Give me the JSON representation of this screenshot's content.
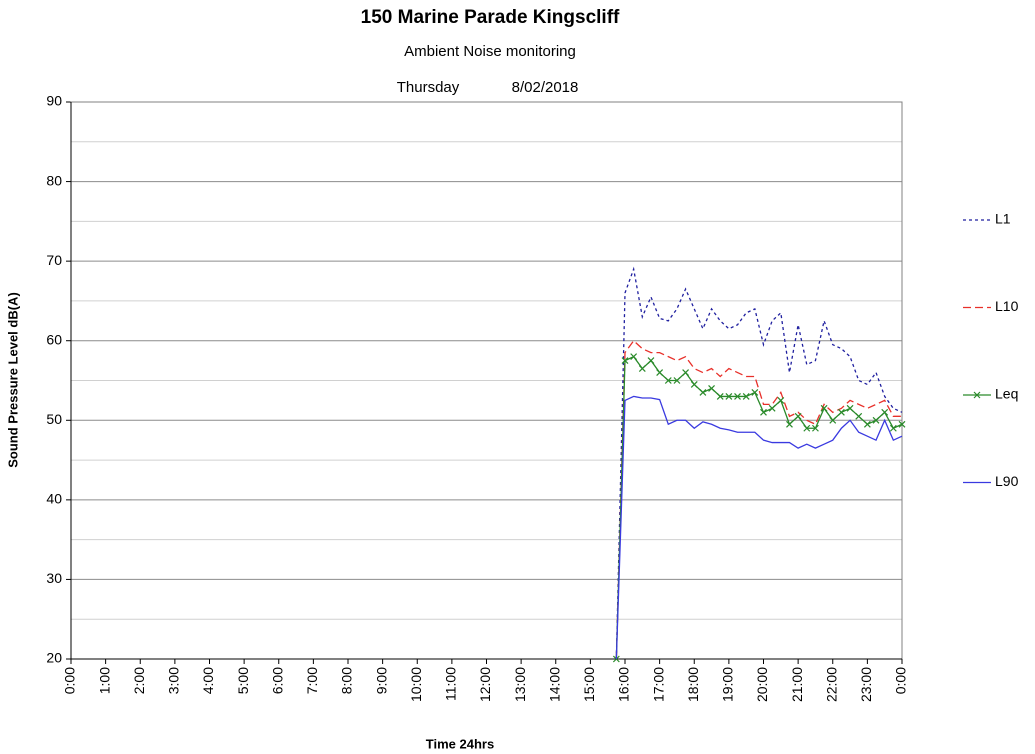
{
  "chart_data": {
    "type": "line",
    "title": "150 Marine Parade Kingscliff",
    "subtitle": "Ambient Noise monitoring",
    "day": "Thursday",
    "date": "8/02/2018",
    "x_label": "Time 24hrs",
    "y_label": "Sound Pressure Level dB(A)",
    "xlim": [
      0,
      24
    ],
    "xticks": [
      {
        "value": 0,
        "label": "0:00"
      },
      {
        "value": 1,
        "label": "1:00"
      },
      {
        "value": 2,
        "label": "2:00"
      },
      {
        "value": 3,
        "label": "3:00"
      },
      {
        "value": 4,
        "label": "4:00"
      },
      {
        "value": 5,
        "label": "5:00"
      },
      {
        "value": 6,
        "label": "6:00"
      },
      {
        "value": 7,
        "label": "7:00"
      },
      {
        "value": 8,
        "label": "8:00"
      },
      {
        "value": 9,
        "label": "9:00"
      },
      {
        "value": 10,
        "label": "10:00"
      },
      {
        "value": 11,
        "label": "11:00"
      },
      {
        "value": 12,
        "label": "12:00"
      },
      {
        "value": 13,
        "label": "13:00"
      },
      {
        "value": 14,
        "label": "14:00"
      },
      {
        "value": 15,
        "label": "15:00"
      },
      {
        "value": 16,
        "label": "16:00"
      },
      {
        "value": 17,
        "label": "17:00"
      },
      {
        "value": 18,
        "label": "18:00"
      },
      {
        "value": 19,
        "label": "19:00"
      },
      {
        "value": 20,
        "label": "20:00"
      },
      {
        "value": 21,
        "label": "21:00"
      },
      {
        "value": 22,
        "label": "22:00"
      },
      {
        "value": 23,
        "label": "23:00"
      },
      {
        "value": 24,
        "label": "0:00"
      }
    ],
    "ylim": [
      20,
      90
    ],
    "yticks": [
      20,
      30,
      40,
      50,
      60,
      70,
      80,
      90
    ],
    "minor_grid_y": [
      25,
      35,
      45,
      55,
      65,
      75,
      85
    ],
    "grid": true,
    "legend": "right",
    "x": [
      15.75,
      16,
      16.25,
      16.5,
      16.75,
      17,
      17.25,
      17.5,
      17.75,
      18,
      18.25,
      18.5,
      18.75,
      19,
      19.25,
      19.5,
      19.75,
      20,
      20.25,
      20.5,
      20.75,
      21,
      21.25,
      21.5,
      21.75,
      22,
      22.25,
      22.5,
      22.75,
      23,
      23.25,
      23.5,
      23.75,
      24
    ],
    "series": [
      {
        "name": "L1",
        "color": "#1f1f9f",
        "line_style": "dotted",
        "marker": "none",
        "values": [
          20,
          66,
          69,
          63,
          65.5,
          62.8,
          62.5,
          64,
          66.5,
          64,
          61.5,
          64,
          62.5,
          61.5,
          62,
          63.5,
          64,
          59.5,
          62.5,
          63.5,
          56,
          62,
          57,
          57.5,
          62.5,
          59.5,
          59,
          58,
          55,
          54.5,
          56,
          53,
          51.5,
          51
        ]
      },
      {
        "name": "L10",
        "color": "#e8302a",
        "line_style": "dashed",
        "marker": "none",
        "values": [
          20,
          58.5,
          60,
          59,
          58.5,
          58.5,
          58,
          57.5,
          58,
          56.5,
          56,
          56.5,
          55.5,
          56.5,
          56,
          55.5,
          55.5,
          52,
          52,
          53.5,
          50.5,
          51,
          50,
          49.5,
          52,
          51,
          51.5,
          52.5,
          52,
          51.5,
          52,
          52.5,
          50.5,
          50.5
        ]
      },
      {
        "name": "Leq",
        "color": "#2a8a2a",
        "line_style": "solid",
        "marker": "x",
        "values": [
          20,
          57.5,
          58,
          56.5,
          57.5,
          56,
          55,
          55,
          56,
          54.5,
          53.5,
          54,
          53,
          53,
          53,
          53,
          53.5,
          51,
          51.5,
          52.5,
          49.5,
          50.5,
          49,
          49,
          51.5,
          50,
          51,
          51.5,
          50.5,
          49.5,
          50,
          51,
          49,
          49.5
        ]
      },
      {
        "name": "L90",
        "color": "#3a3ae0",
        "line_style": "solid",
        "marker": "none",
        "values": [
          20,
          52.5,
          53,
          52.8,
          52.8,
          52.6,
          49.5,
          50,
          50,
          49,
          49.8,
          49.5,
          49,
          48.8,
          48.5,
          48.5,
          48.5,
          47.5,
          47.2,
          47.2,
          47.2,
          46.5,
          47,
          46.5,
          47,
          47.5,
          49,
          50,
          48.5,
          48,
          47.5,
          50,
          47.5,
          48
        ]
      }
    ]
  }
}
